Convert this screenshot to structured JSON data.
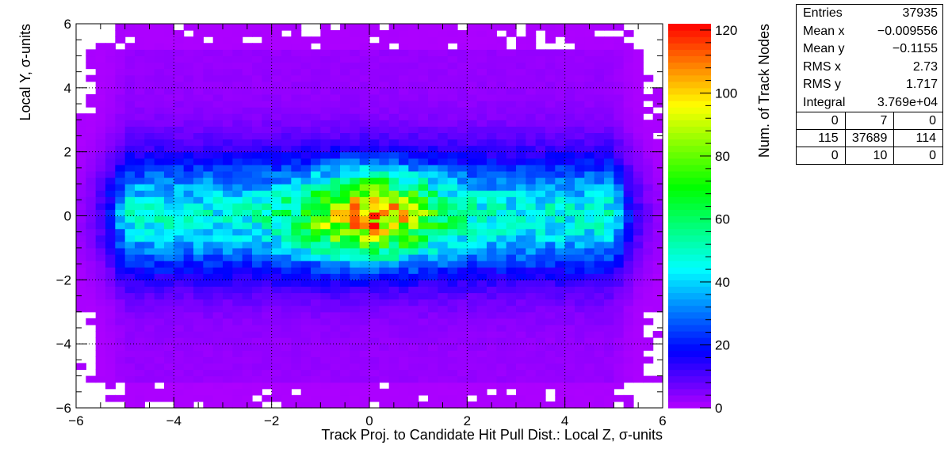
{
  "chart_data": {
    "type": "heatmap",
    "title": "",
    "xlabel": "Track Proj. to Candidate Hit Pull Dist.: Local Z, σ-units",
    "ylabel": "Local Y, σ-units",
    "zlabel": "Num. of Track Nodes",
    "xlim": [
      -6,
      6
    ],
    "ylim": [
      -6,
      6
    ],
    "zlim": [
      0,
      122
    ],
    "nbins_x": 60,
    "nbins_y": 60,
    "x_ticks": [
      "−6",
      "−4",
      "−2",
      "0",
      "2",
      "4",
      "6"
    ],
    "y_ticks": [
      "−6",
      "−4",
      "−2",
      "0",
      "2",
      "4",
      "6"
    ],
    "z_ticks": [
      "0",
      "20",
      "40",
      "60",
      "80",
      "100",
      "120"
    ],
    "grid": true,
    "colormap": "ROOT rainbow (violet → blue → cyan → green → yellow → red)",
    "peak": {
      "x": 0.1,
      "y": 0.0,
      "value": 120
    },
    "stats": {
      "entries_label": "Entries",
      "entries": "37935",
      "meanx_label": "Mean x",
      "meanx": "−0.009556",
      "meany_label": "Mean y",
      "meany": "−0.1155",
      "rmsx_label": "RMS x",
      "rmsx": "2.73",
      "rmsy_label": "RMS y",
      "rmsy": "1.717",
      "integral_label": "Integral",
      "integral": "3.769e+04",
      "overflow": [
        [
          "0",
          "7",
          "0"
        ],
        [
          "115",
          "37689",
          "114"
        ],
        [
          "0",
          "10",
          "0"
        ]
      ]
    }
  }
}
